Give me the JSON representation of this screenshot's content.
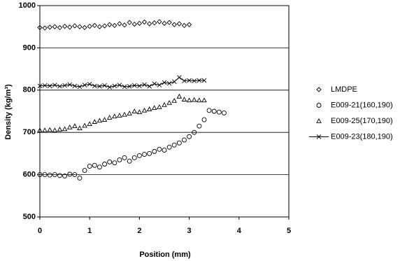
{
  "chart_data": {
    "type": "scatter",
    "x_label": "Position (mm)",
    "y_label": "Density (kg/m³)",
    "xlim": [
      0,
      5
    ],
    "xticks": [
      0,
      1,
      2,
      3,
      4,
      5
    ],
    "ylim": [
      500,
      1000
    ],
    "yticks": [
      500,
      600,
      700,
      800,
      900,
      1000
    ],
    "grid": true,
    "legend": "right",
    "series": [
      {
        "name": "LMDPE",
        "color": "#000000",
        "marker": "diamond",
        "line": false,
        "x": [
          0,
          0.1,
          0.2,
          0.3,
          0.4,
          0.5,
          0.6,
          0.7,
          0.8,
          0.9,
          1,
          1.1,
          1.2,
          1.3,
          1.4,
          1.5,
          1.6,
          1.7,
          1.8,
          1.9,
          2,
          2.1,
          2.2,
          2.3,
          2.4,
          2.5,
          2.6,
          2.7,
          2.8,
          2.9,
          3
        ],
        "values": [
          948,
          947,
          949,
          950,
          948,
          951,
          949,
          952,
          950,
          948,
          951,
          953,
          950,
          952,
          955,
          953,
          957,
          954,
          960,
          956,
          958,
          961,
          957,
          959,
          962,
          958,
          960,
          955,
          957,
          953,
          955
        ]
      },
      {
        "name": "E009-21(160,190)",
        "color": "#000000",
        "marker": "circle",
        "line": false,
        "x": [
          0,
          0.1,
          0.2,
          0.3,
          0.4,
          0.5,
          0.6,
          0.7,
          0.8,
          0.9,
          1,
          1.1,
          1.2,
          1.3,
          1.4,
          1.5,
          1.6,
          1.7,
          1.8,
          1.9,
          2,
          2.1,
          2.2,
          2.3,
          2.4,
          2.5,
          2.6,
          2.7,
          2.8,
          2.9,
          3,
          3.1,
          3.2,
          3.3,
          3.4,
          3.5,
          3.6,
          3.7
        ],
        "values": [
          600,
          600,
          599,
          600,
          598,
          597,
          601,
          600,
          592,
          610,
          620,
          622,
          618,
          625,
          630,
          628,
          635,
          640,
          632,
          640,
          645,
          648,
          650,
          655,
          660,
          658,
          665,
          670,
          675,
          682,
          690,
          700,
          715,
          730,
          752,
          750,
          748,
          746
        ]
      },
      {
        "name": "E009-25(170,190)",
        "color": "#000000",
        "marker": "triangle",
        "line": false,
        "x": [
          0,
          0.1,
          0.2,
          0.3,
          0.4,
          0.5,
          0.6,
          0.7,
          0.8,
          0.9,
          1,
          1.1,
          1.2,
          1.3,
          1.4,
          1.5,
          1.6,
          1.7,
          1.8,
          1.9,
          2,
          2.1,
          2.2,
          2.3,
          2.4,
          2.5,
          2.6,
          2.7,
          2.8,
          2.9,
          3,
          3.1,
          3.2,
          3.3
        ],
        "values": [
          705,
          705,
          706,
          705,
          707,
          708,
          712,
          715,
          710,
          716,
          720,
          725,
          728,
          730,
          735,
          738,
          740,
          742,
          745,
          750,
          748,
          752,
          755,
          758,
          760,
          765,
          770,
          775,
          785,
          778,
          776,
          777,
          776,
          776
        ]
      },
      {
        "name": "E009-23(180,190)",
        "color": "#000000",
        "marker": "x",
        "line": true,
        "x": [
          0,
          0.1,
          0.2,
          0.3,
          0.4,
          0.5,
          0.6,
          0.7,
          0.8,
          0.9,
          1,
          1.1,
          1.2,
          1.3,
          1.4,
          1.5,
          1.6,
          1.7,
          1.8,
          1.9,
          2,
          2.1,
          2.2,
          2.3,
          2.4,
          2.5,
          2.6,
          2.7,
          2.8,
          2.9,
          3,
          3.1,
          3.2,
          3.3
        ],
        "values": [
          810,
          811,
          810,
          812,
          809,
          811,
          813,
          810,
          808,
          812,
          814,
          810,
          809,
          811,
          807,
          810,
          812,
          808,
          809,
          811,
          810,
          813,
          809,
          815,
          812,
          818,
          816,
          820,
          830,
          822,
          823,
          822,
          823,
          823
        ]
      }
    ]
  }
}
